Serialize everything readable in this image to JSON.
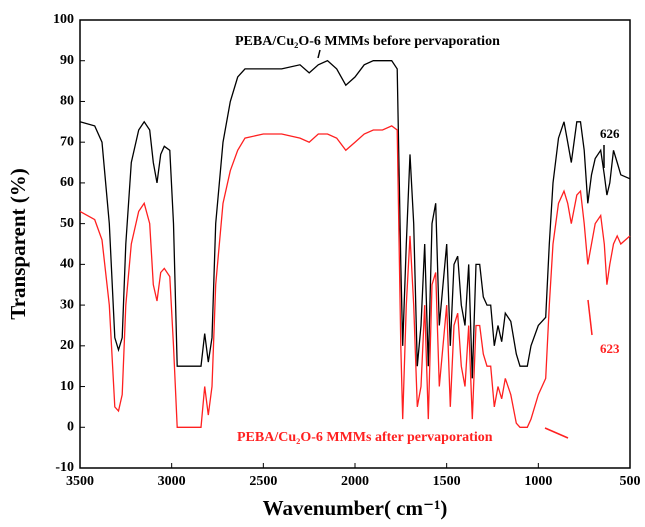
{
  "chart_data": {
    "type": "line",
    "xlabel": "Wavenumber( cm⁻¹)",
    "ylabel": "Transparent (%)",
    "xlim": [
      3500,
      500
    ],
    "ylim": [
      -10,
      100
    ],
    "xticks": [
      3500,
      3000,
      2500,
      2000,
      1500,
      1000,
      500
    ],
    "yticks": [
      -10,
      0,
      10,
      20,
      30,
      40,
      50,
      60,
      70,
      80,
      90,
      100
    ],
    "x": [
      3500,
      3420,
      3380,
      3340,
      3310,
      3290,
      3270,
      3250,
      3220,
      3180,
      3150,
      3120,
      3100,
      3080,
      3060,
      3040,
      3010,
      2990,
      2970,
      2900,
      2840,
      2820,
      2800,
      2780,
      2760,
      2720,
      2680,
      2640,
      2600,
      2500,
      2400,
      2300,
      2250,
      2200,
      2150,
      2100,
      2050,
      2000,
      1950,
      1900,
      1850,
      1800,
      1770,
      1750,
      1740,
      1720,
      1700,
      1680,
      1660,
      1640,
      1620,
      1600,
      1580,
      1560,
      1540,
      1520,
      1500,
      1480,
      1460,
      1440,
      1420,
      1400,
      1380,
      1360,
      1340,
      1320,
      1300,
      1280,
      1260,
      1240,
      1220,
      1200,
      1180,
      1150,
      1120,
      1100,
      1060,
      1040,
      1000,
      960,
      940,
      920,
      890,
      860,
      840,
      820,
      790,
      770,
      750,
      730,
      710,
      690,
      660,
      640,
      626,
      610,
      590,
      570,
      550,
      500
    ],
    "series": [
      {
        "name": "PEBA/Cu₂O-6 MMMs before pervaporation",
        "color": "#000000",
        "values": [
          75,
          74,
          70,
          50,
          22,
          19,
          22,
          45,
          65,
          73,
          75,
          73,
          65,
          60,
          67,
          69,
          68,
          50,
          15,
          15,
          15,
          23,
          16,
          22,
          50,
          70,
          80,
          86,
          88,
          88,
          88,
          89,
          87,
          89,
          90,
          88,
          84,
          86,
          89,
          90,
          90,
          90,
          88,
          40,
          20,
          45,
          67,
          50,
          15,
          25,
          45,
          15,
          50,
          55,
          25,
          35,
          45,
          20,
          40,
          42,
          30,
          25,
          40,
          12,
          40,
          40,
          32,
          30,
          30,
          20,
          25,
          21,
          28,
          26,
          18,
          15,
          15,
          20,
          25,
          27,
          45,
          60,
          71,
          75,
          70,
          65,
          75,
          75,
          68,
          55,
          62,
          66,
          68,
          62,
          57,
          60,
          68,
          65,
          62,
          61
        ]
      },
      {
        "name": "PEBA/Cu₂O-6 MMMs after pervaporation",
        "color": "#ff2020",
        "values": [
          53,
          51,
          46,
          30,
          5,
          4,
          8,
          30,
          45,
          53,
          55,
          50,
          35,
          31,
          38,
          39,
          37,
          20,
          0,
          0,
          0,
          10,
          3,
          10,
          35,
          55,
          63,
          68,
          71,
          72,
          72,
          71,
          70,
          72,
          72,
          71,
          68,
          70,
          72,
          73,
          73,
          74,
          73,
          20,
          2,
          30,
          47,
          30,
          5,
          10,
          30,
          2,
          35,
          38,
          10,
          20,
          30,
          5,
          25,
          28,
          15,
          10,
          25,
          2,
          25,
          25,
          18,
          15,
          15,
          5,
          10,
          7,
          12,
          8,
          1,
          0,
          0,
          2,
          8,
          12,
          30,
          45,
          55,
          58,
          55,
          50,
          57,
          58,
          50,
          40,
          45,
          50,
          52,
          45,
          35,
          40,
          45,
          47,
          45,
          47
        ]
      }
    ],
    "annotations": [
      "626",
      "623"
    ]
  }
}
